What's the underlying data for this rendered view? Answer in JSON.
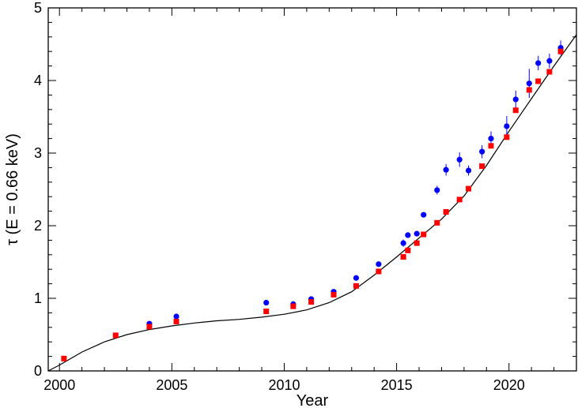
{
  "chart_data": {
    "type": "scatter",
    "xlabel": "Year",
    "ylabel": "τ (E = 0.66 keV)",
    "xlim": [
      1999.5,
      2023.0
    ],
    "ylim": [
      0,
      5
    ],
    "x_ticks": [
      "2000",
      "2005",
      "2010",
      "2015",
      "2020"
    ],
    "y_ticks": [
      "0",
      "1",
      "2",
      "3",
      "4",
      "5"
    ],
    "grid": false,
    "legend": "none",
    "colors": {
      "series_blue": "#0000ff",
      "series_red": "#ff0000",
      "model": "#000000"
    },
    "series": [
      {
        "marker": "circle",
        "color": "#0000ff",
        "points": [
          {
            "x": 2004.0,
            "y": 0.65
          },
          {
            "x": 2005.2,
            "y": 0.75
          },
          {
            "x": 2009.2,
            "y": 0.94
          },
          {
            "x": 2010.4,
            "y": 0.92
          },
          {
            "x": 2011.2,
            "y": 0.99
          },
          {
            "x": 2012.2,
            "y": 1.09
          },
          {
            "x": 2013.2,
            "y": 1.28
          },
          {
            "x": 2014.2,
            "y": 1.47
          },
          {
            "x": 2015.3,
            "y": 1.76,
            "err": 0.05
          },
          {
            "x": 2015.5,
            "y": 1.87,
            "err": 0.04
          },
          {
            "x": 2015.9,
            "y": 1.89,
            "err": 0.03
          },
          {
            "x": 2016.2,
            "y": 2.15,
            "err": 0.03
          },
          {
            "x": 2016.8,
            "y": 2.49,
            "err": 0.06
          },
          {
            "x": 2017.2,
            "y": 2.77,
            "err": 0.08
          },
          {
            "x": 2017.8,
            "y": 2.91,
            "err": 0.1
          },
          {
            "x": 2018.2,
            "y": 2.76,
            "err": 0.07
          },
          {
            "x": 2018.8,
            "y": 3.02,
            "err": 0.09
          },
          {
            "x": 2019.2,
            "y": 3.2,
            "err": 0.1
          },
          {
            "x": 2019.9,
            "y": 3.37,
            "err": 0.14
          },
          {
            "x": 2020.3,
            "y": 3.74,
            "err": 0.12
          },
          {
            "x": 2020.9,
            "y": 3.96,
            "err": 0.2
          },
          {
            "x": 2021.3,
            "y": 4.24,
            "err": 0.1
          },
          {
            "x": 2021.8,
            "y": 4.27,
            "err": 0.1
          },
          {
            "x": 2022.3,
            "y": 4.45,
            "err": 0.1
          }
        ]
      },
      {
        "marker": "square",
        "color": "#ff0000",
        "points": [
          {
            "x": 2000.2,
            "y": 0.17
          },
          {
            "x": 2002.5,
            "y": 0.49
          },
          {
            "x": 2004.0,
            "y": 0.61
          },
          {
            "x": 2005.2,
            "y": 0.68
          },
          {
            "x": 2009.2,
            "y": 0.82
          },
          {
            "x": 2010.4,
            "y": 0.89
          },
          {
            "x": 2011.2,
            "y": 0.95
          },
          {
            "x": 2012.2,
            "y": 1.05
          },
          {
            "x": 2013.2,
            "y": 1.17
          },
          {
            "x": 2014.2,
            "y": 1.37
          },
          {
            "x": 2015.3,
            "y": 1.57
          },
          {
            "x": 2015.5,
            "y": 1.66
          },
          {
            "x": 2015.9,
            "y": 1.76
          },
          {
            "x": 2016.2,
            "y": 1.88
          },
          {
            "x": 2016.8,
            "y": 2.04
          },
          {
            "x": 2017.2,
            "y": 2.19
          },
          {
            "x": 2017.8,
            "y": 2.36
          },
          {
            "x": 2018.2,
            "y": 2.51
          },
          {
            "x": 2018.8,
            "y": 2.82
          },
          {
            "x": 2019.2,
            "y": 3.1
          },
          {
            "x": 2019.9,
            "y": 3.22
          },
          {
            "x": 2020.3,
            "y": 3.59
          },
          {
            "x": 2020.9,
            "y": 3.87
          },
          {
            "x": 2021.3,
            "y": 3.99
          },
          {
            "x": 2021.8,
            "y": 4.12
          },
          {
            "x": 2022.3,
            "y": 4.4
          }
        ]
      }
    ],
    "model_curve": {
      "color": "#000000",
      "points": [
        {
          "x": 1999.5,
          "y": 0.0
        },
        {
          "x": 2000.0,
          "y": 0.08
        },
        {
          "x": 2000.5,
          "y": 0.17
        },
        {
          "x": 2001.0,
          "y": 0.26
        },
        {
          "x": 2002.0,
          "y": 0.4
        },
        {
          "x": 2003.0,
          "y": 0.5
        },
        {
          "x": 2004.0,
          "y": 0.57
        },
        {
          "x": 2005.0,
          "y": 0.62
        },
        {
          "x": 2006.0,
          "y": 0.66
        },
        {
          "x": 2007.0,
          "y": 0.69
        },
        {
          "x": 2008.0,
          "y": 0.71
        },
        {
          "x": 2009.0,
          "y": 0.74
        },
        {
          "x": 2010.0,
          "y": 0.78
        },
        {
          "x": 2011.0,
          "y": 0.84
        },
        {
          "x": 2012.0,
          "y": 0.94
        },
        {
          "x": 2013.0,
          "y": 1.09
        },
        {
          "x": 2014.0,
          "y": 1.32
        },
        {
          "x": 2015.0,
          "y": 1.57
        },
        {
          "x": 2016.0,
          "y": 1.83
        },
        {
          "x": 2017.0,
          "y": 2.09
        },
        {
          "x": 2018.0,
          "y": 2.41
        },
        {
          "x": 2019.0,
          "y": 2.83
        },
        {
          "x": 2020.0,
          "y": 3.3
        },
        {
          "x": 2021.0,
          "y": 3.75
        },
        {
          "x": 2022.0,
          "y": 4.2
        },
        {
          "x": 2023.0,
          "y": 4.63
        }
      ]
    }
  }
}
